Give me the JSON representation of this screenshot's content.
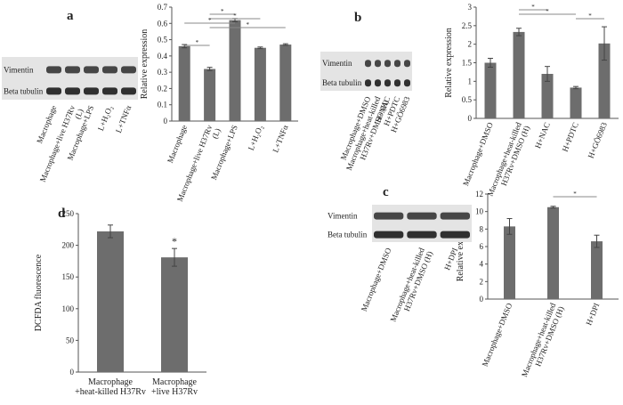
{
  "chart_data": [
    {
      "type": "bar",
      "panel": "a",
      "ylabel": "Relative expression",
      "color": "#6d6d6d",
      "blot_labels": [
        "Vimentin",
        "Beta tubulin"
      ],
      "categories": [
        "Macrophage",
        "Macrophage+live H37Rv\n(L)",
        "Macrophage+LPS",
        "L+H₂O₂",
        "L+TNFα"
      ],
      "values": [
        0.46,
        0.32,
        0.62,
        0.45,
        0.47
      ],
      "errors": [
        0.01,
        0.01,
        0.01,
        0.005,
        0.005
      ],
      "ylim": [
        0,
        0.7
      ],
      "yticks": [
        0,
        0.1,
        0.2,
        0.3,
        0.4,
        0.5,
        0.6,
        0.7
      ],
      "significance": [
        {
          "label": "*",
          "pair": [
            0,
            1
          ]
        },
        {
          "label": "*",
          "pair": [
            1,
            2
          ]
        },
        {
          "label": "*",
          "pair": [
            1,
            3
          ]
        },
        {
          "label": "*",
          "pair": [
            0,
            2
          ]
        },
        {
          "label": "*",
          "pair": [
            1,
            4
          ]
        }
      ]
    },
    {
      "type": "bar",
      "panel": "b",
      "ylabel": "Relative expression",
      "color": "#6d6d6d",
      "blot_labels": [
        "Vimentin",
        "Beta tubulin"
      ],
      "categories": [
        "Macrophage+DMSO",
        "Macrophage+heat-killed\nH37Rv+DMSO (H)",
        "H+NAC",
        "H+PDTC",
        "H+GÖ6983"
      ],
      "values": [
        1.5,
        2.33,
        1.2,
        0.83,
        2.02
      ],
      "errors": [
        0.12,
        0.1,
        0.2,
        0.03,
        0.45
      ],
      "ylim": [
        0,
        3
      ],
      "yticks": [
        0,
        0.5,
        1,
        1.5,
        2,
        2.5,
        3
      ],
      "significance": [
        {
          "label": "*",
          "pair": [
            1,
            2
          ]
        },
        {
          "label": "*",
          "pair": [
            1,
            3
          ]
        },
        {
          "label": "*",
          "pair": [
            3,
            4
          ]
        }
      ]
    },
    {
      "type": "bar",
      "panel": "c",
      "ylabel": "Relative expression",
      "color": "#6d6d6d",
      "blot_labels": [
        "Vimentin",
        "Beta tubulin"
      ],
      "categories": [
        "Macrophage+DMSO",
        "Macrophage+heat-killed\nH37Rv+DMSO (H)",
        "H+DPI"
      ],
      "values": [
        8.3,
        10.5,
        6.6
      ],
      "errors": [
        0.9,
        0.1,
        0.7
      ],
      "ylim": [
        0,
        12
      ],
      "yticks": [
        0,
        2,
        4,
        6,
        8,
        10,
        12
      ],
      "significance": [
        {
          "label": "*",
          "pair": [
            1,
            2
          ]
        }
      ]
    },
    {
      "type": "bar",
      "panel": "d",
      "ylabel": "DCFDA fluorescence",
      "color": "#6d6d6d",
      "categories": [
        "Macrophage\n+heat-killed H37Rv",
        "Macrophage\n+live H37Rv"
      ],
      "values": [
        222,
        181
      ],
      "errors": [
        10,
        14
      ],
      "ylim": [
        0,
        250
      ],
      "yticks": [
        0,
        50,
        100,
        150,
        200,
        250
      ],
      "significance": [
        {
          "label": "*",
          "pair": [
            1
          ]
        }
      ]
    }
  ]
}
